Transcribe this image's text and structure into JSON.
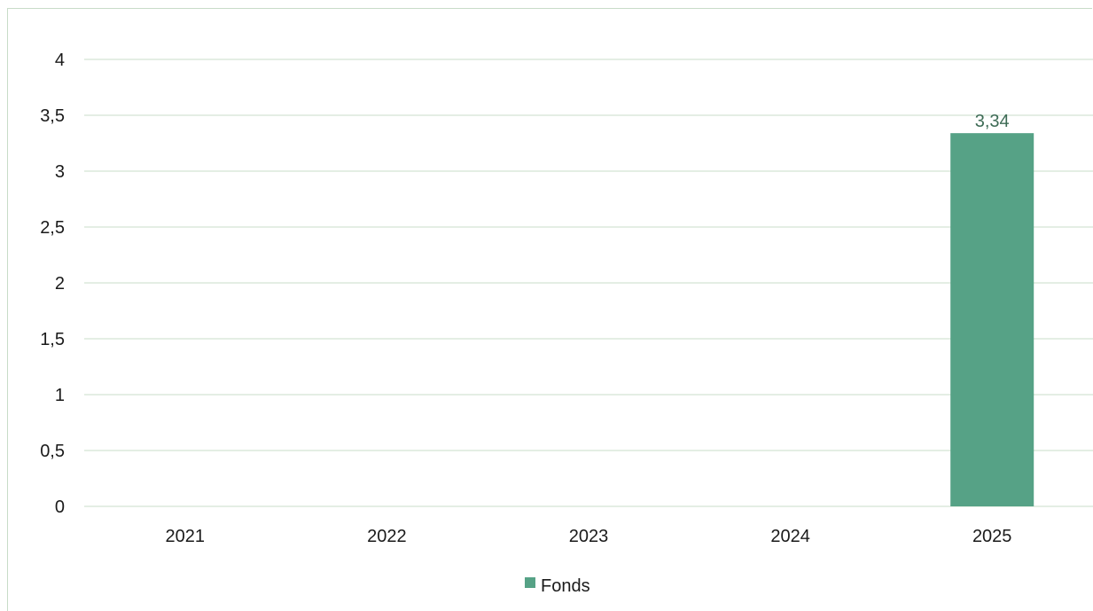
{
  "chart_data": {
    "type": "bar",
    "categories": [
      "2021",
      "2022",
      "2023",
      "2024",
      "2025"
    ],
    "series": [
      {
        "name": "Fonds",
        "values": [
          null,
          null,
          null,
          null,
          3.34
        ],
        "color": "#56a286"
      }
    ],
    "data_labels": [
      "",
      "",
      "",
      "",
      "3,34"
    ],
    "ylim": [
      0,
      4
    ],
    "y_ticks": [
      0,
      0.5,
      1,
      1.5,
      2,
      2.5,
      3,
      3.5,
      4
    ],
    "y_tick_labels": [
      "0",
      "0,5",
      "1",
      "1,5",
      "2",
      "2,5",
      "3",
      "3,5",
      "4"
    ],
    "grid": true,
    "grid_color": "#c8dcc8",
    "legend": {
      "position": "bottom",
      "entries": [
        "Fonds"
      ]
    },
    "title": "",
    "xlabel": "",
    "ylabel": ""
  }
}
